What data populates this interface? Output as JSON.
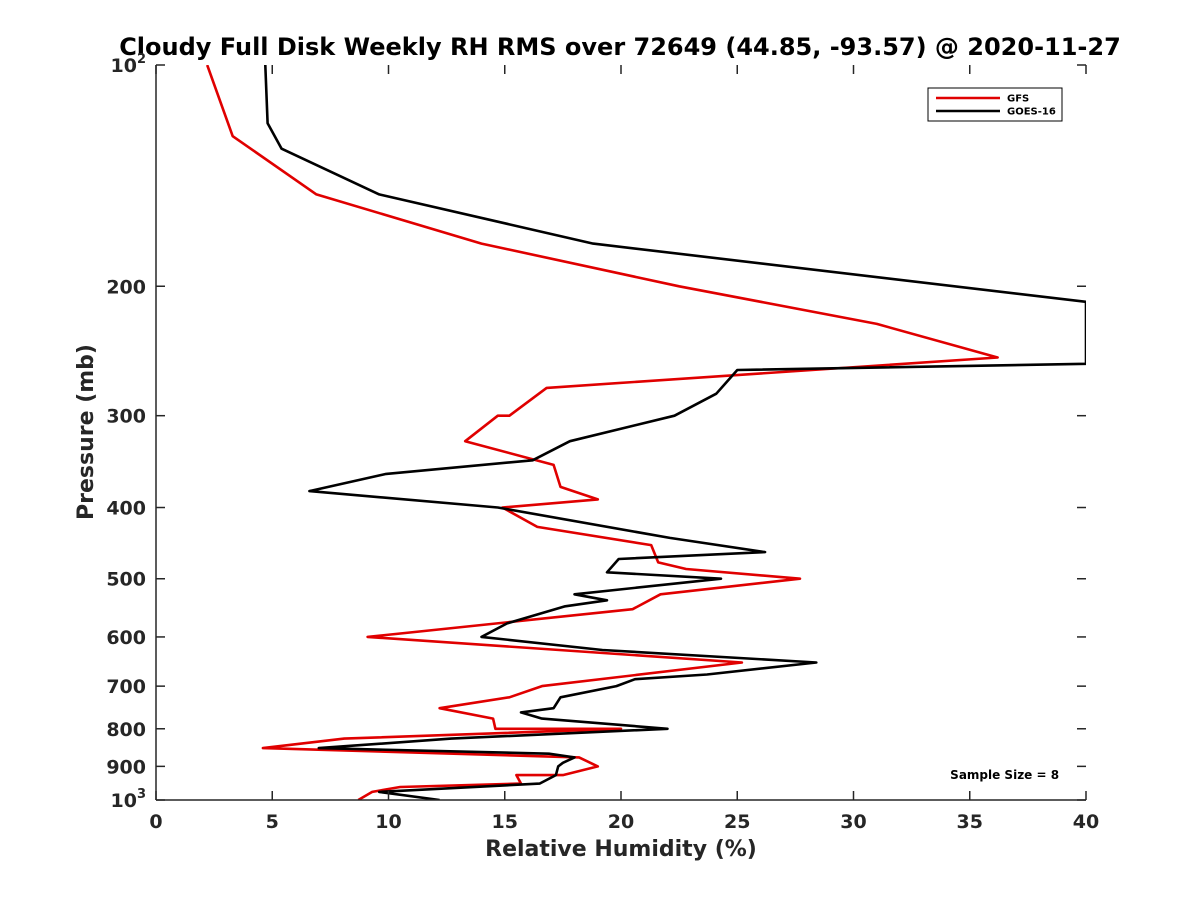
{
  "chart_data": {
    "type": "line",
    "title": "Cloudy Full Disk Weekly RH RMS over 72649 (44.85, -93.57) @ 2020-11-27",
    "xlabel": "Relative Humidity (%)",
    "ylabel": "Pressure (mb)",
    "xlim": [
      0,
      40
    ],
    "ylim": [
      100,
      1000
    ],
    "yscale": "log",
    "y_reversed": true,
    "x_ticks": [
      "0",
      "5",
      "10",
      "15",
      "20",
      "25",
      "30",
      "35",
      "40"
    ],
    "y_ticks": [
      {
        "value": 100,
        "base": "10",
        "exp": "2"
      },
      {
        "value": 200,
        "label": "200"
      },
      {
        "value": 300,
        "label": "300"
      },
      {
        "value": 400,
        "label": "400"
      },
      {
        "value": 500,
        "label": "500"
      },
      {
        "value": 600,
        "label": "600"
      },
      {
        "value": 700,
        "label": "700"
      },
      {
        "value": 800,
        "label": "800"
      },
      {
        "value": 900,
        "label": "900"
      },
      {
        "value": 1000,
        "base": "10",
        "exp": "3"
      }
    ],
    "grid": false,
    "legend_position": "top-right",
    "series": [
      {
        "name": "GFS",
        "color": "#e00000",
        "points": [
          [
            2.2,
            100
          ],
          [
            3.3,
            125
          ],
          [
            6.9,
            150
          ],
          [
            14.0,
            175
          ],
          [
            22.5,
            200
          ],
          [
            31.0,
            225
          ],
          [
            36.2,
            250
          ],
          [
            16.8,
            275
          ],
          [
            15.2,
            300
          ],
          [
            14.7,
            300
          ],
          [
            13.3,
            325
          ],
          [
            17.1,
            350
          ],
          [
            17.4,
            375
          ],
          [
            19.0,
            390
          ],
          [
            14.9,
            400
          ],
          [
            16.4,
            425
          ],
          [
            21.3,
            450
          ],
          [
            21.6,
            475
          ],
          [
            22.8,
            485
          ],
          [
            27.7,
            500
          ],
          [
            21.7,
            525
          ],
          [
            20.5,
            550
          ],
          [
            9.1,
            600
          ],
          [
            25.2,
            650
          ],
          [
            16.6,
            700
          ],
          [
            15.2,
            725
          ],
          [
            12.2,
            750
          ],
          [
            14.5,
            775
          ],
          [
            14.6,
            800
          ],
          [
            20.0,
            800
          ],
          [
            8.1,
            825
          ],
          [
            4.6,
            850
          ],
          [
            18.2,
            875
          ],
          [
            19.0,
            900
          ],
          [
            17.5,
            925
          ],
          [
            15.5,
            925
          ],
          [
            15.7,
            950
          ],
          [
            10.5,
            960
          ],
          [
            9.3,
            975
          ],
          [
            8.7,
            1000
          ]
        ]
      },
      {
        "name": "GOES-16",
        "color": "#000000",
        "points": [
          [
            4.7,
            100
          ],
          [
            4.8,
            120
          ],
          [
            5.4,
            130
          ],
          [
            9.6,
            150
          ],
          [
            18.8,
            175
          ],
          [
            40.0,
            210
          ],
          [
            40.0,
            255
          ],
          [
            25.0,
            260
          ],
          [
            24.1,
            280
          ],
          [
            22.3,
            300
          ],
          [
            17.8,
            325
          ],
          [
            16.2,
            345
          ],
          [
            9.9,
            360
          ],
          [
            6.6,
            380
          ],
          [
            14.7,
            400
          ],
          [
            22.1,
            440
          ],
          [
            26.2,
            460
          ],
          [
            19.9,
            470
          ],
          [
            19.4,
            490
          ],
          [
            24.3,
            500
          ],
          [
            18.0,
            525
          ],
          [
            19.4,
            535
          ],
          [
            17.6,
            545
          ],
          [
            15.1,
            575
          ],
          [
            14.0,
            600
          ],
          [
            19.2,
            625
          ],
          [
            28.4,
            650
          ],
          [
            23.7,
            675
          ],
          [
            20.6,
            685
          ],
          [
            19.8,
            700
          ],
          [
            17.4,
            725
          ],
          [
            17.1,
            750
          ],
          [
            15.7,
            760
          ],
          [
            16.6,
            775
          ],
          [
            22.0,
            800
          ],
          [
            12.7,
            825
          ],
          [
            7.0,
            850
          ],
          [
            16.9,
            865
          ],
          [
            18.0,
            875
          ],
          [
            17.5,
            890
          ],
          [
            17.3,
            900
          ],
          [
            17.2,
            925
          ],
          [
            16.5,
            950
          ],
          [
            9.6,
            975
          ],
          [
            12.2,
            1000
          ]
        ]
      }
    ],
    "annotations": [
      {
        "text": "Sample Size = 8",
        "x": 36.5,
        "y": 925
      }
    ]
  }
}
